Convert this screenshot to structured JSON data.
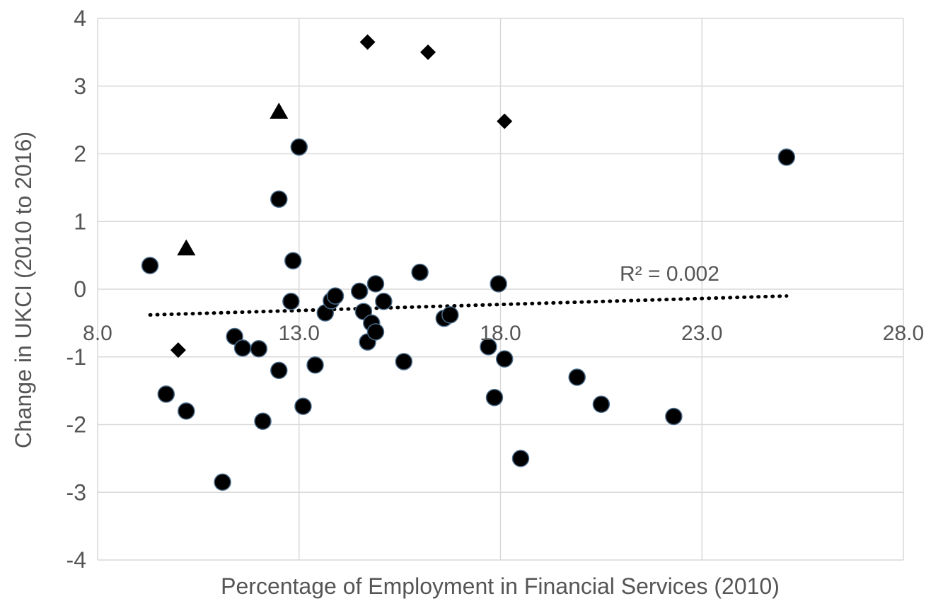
{
  "chart_data": {
    "type": "scatter",
    "title": "",
    "xlabel": "Percentage of Employment in Financial Services (2010)",
    "ylabel": "Change in UKCI (2010 to 2016)",
    "xlim": [
      8.0,
      28.0
    ],
    "ylim": [
      -4,
      4
    ],
    "x_ticks": [
      "8.0",
      "13.0",
      "18.0",
      "23.0",
      "28.0"
    ],
    "y_ticks": [
      "4",
      "3",
      "2",
      "1",
      "0",
      "-1",
      "-2",
      "-3",
      "-4"
    ],
    "grid": true,
    "legend": "none",
    "series": [
      {
        "marker": "circle",
        "color": "#000000",
        "points": [
          [
            9.3,
            0.35
          ],
          [
            9.7,
            -1.55
          ],
          [
            10.2,
            -1.8
          ],
          [
            11.4,
            -0.7
          ],
          [
            11.6,
            -0.87
          ],
          [
            11.1,
            -2.85
          ],
          [
            12.0,
            -0.88
          ],
          [
            12.1,
            -1.95
          ],
          [
            12.5,
            1.33
          ],
          [
            12.5,
            -1.2
          ],
          [
            12.8,
            -0.18
          ],
          [
            12.85,
            0.42
          ],
          [
            13.0,
            2.1
          ],
          [
            13.1,
            -1.73
          ],
          [
            13.4,
            -1.12
          ],
          [
            13.65,
            -0.35
          ],
          [
            13.8,
            -0.17
          ],
          [
            13.9,
            -0.1
          ],
          [
            14.5,
            -0.03
          ],
          [
            14.6,
            -0.33
          ],
          [
            14.7,
            -0.78
          ],
          [
            14.8,
            -0.5
          ],
          [
            14.9,
            -0.63
          ],
          [
            14.9,
            0.08
          ],
          [
            15.1,
            -0.18
          ],
          [
            15.6,
            -1.07
          ],
          [
            16.0,
            0.25
          ],
          [
            16.6,
            -0.43
          ],
          [
            16.75,
            -0.38
          ],
          [
            17.7,
            -0.85
          ],
          [
            17.85,
            -1.6
          ],
          [
            17.95,
            0.08
          ],
          [
            18.1,
            -1.03
          ],
          [
            18.5,
            -2.5
          ],
          [
            19.9,
            -1.3
          ],
          [
            20.5,
            -1.7
          ],
          [
            22.3,
            -1.88
          ],
          [
            25.1,
            1.95
          ]
        ]
      },
      {
        "marker": "diamond",
        "color": "#000000",
        "points": [
          [
            10.0,
            -0.9
          ],
          [
            14.7,
            3.65
          ],
          [
            16.2,
            3.5
          ],
          [
            18.1,
            2.48
          ]
        ]
      },
      {
        "marker": "triangle",
        "color": "#000000",
        "points": [
          [
            10.2,
            0.6
          ],
          [
            12.5,
            2.62
          ]
        ]
      }
    ],
    "trendline": {
      "style": "dotted",
      "color": "#000000",
      "from": [
        9.3,
        -0.38
      ],
      "to": [
        25.1,
        -0.1
      ],
      "label": "R² = 0.002"
    },
    "colors": {
      "grid": "#d9d9d9",
      "text": "#555555",
      "marker_outline": "#4a6b8a"
    }
  }
}
